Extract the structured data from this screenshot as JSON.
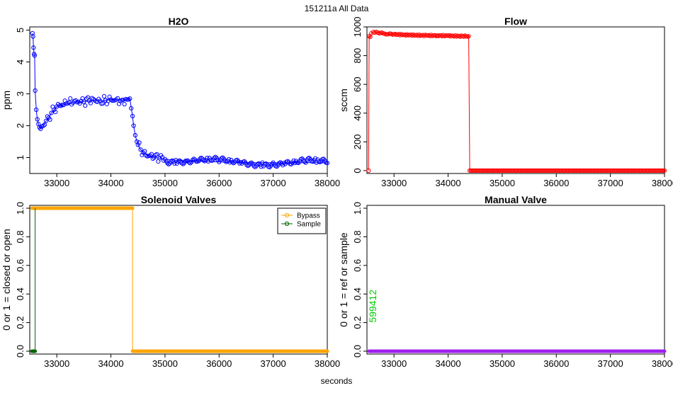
{
  "page": {
    "super_title": "151211a   All Data",
    "x_label": "seconds"
  },
  "chart_data": [
    {
      "id": "h2o",
      "type": "scatter",
      "title": "H2O",
      "xlabel": "",
      "ylabel": "ppm",
      "xlim": [
        32500,
        38000
      ],
      "ylim": [
        0.5,
        5.1
      ],
      "xticks": [
        33000,
        34000,
        35000,
        36000,
        37000,
        38000
      ],
      "yticks": [
        1,
        2,
        3,
        4,
        5
      ],
      "series": [
        {
          "color": "#0000ff",
          "marker": "open-circle",
          "line": true,
          "points": [
            [
              32550,
              4.9
            ],
            [
              32560,
              4.8
            ],
            [
              32570,
              4.45
            ],
            [
              32580,
              4.25
            ],
            [
              32590,
              4.2
            ],
            [
              32600,
              3.1
            ],
            [
              32620,
              2.5
            ],
            [
              32640,
              2.2
            ],
            [
              32660,
              2.05
            ],
            [
              32680,
              1.95
            ],
            [
              32700,
              1.9
            ],
            [
              32750,
              2.0
            ],
            [
              32800,
              2.15
            ],
            [
              32850,
              2.25
            ],
            [
              32900,
              2.4
            ],
            [
              32950,
              2.5
            ],
            [
              33000,
              2.6
            ],
            [
              33100,
              2.65
            ],
            [
              33200,
              2.7
            ],
            [
              33300,
              2.72
            ],
            [
              33400,
              2.75
            ],
            [
              33500,
              2.75
            ],
            [
              33600,
              2.78
            ],
            [
              33700,
              2.8
            ],
            [
              33800,
              2.78
            ],
            [
              33900,
              2.8
            ],
            [
              34000,
              2.82
            ],
            [
              34100,
              2.82
            ],
            [
              34200,
              2.8
            ],
            [
              34300,
              2.82
            ],
            [
              34350,
              2.85
            ],
            [
              34400,
              2.3
            ],
            [
              34420,
              2.0
            ],
            [
              34450,
              1.7
            ],
            [
              34480,
              1.5
            ],
            [
              34500,
              1.4
            ],
            [
              34550,
              1.25
            ],
            [
              34600,
              1.15
            ],
            [
              34700,
              1.05
            ],
            [
              34800,
              1.0
            ],
            [
              34900,
              0.98
            ],
            [
              35000,
              0.95
            ],
            [
              35200,
              0.92
            ],
            [
              35400,
              0.9
            ],
            [
              35600,
              0.88
            ],
            [
              35800,
              0.88
            ],
            [
              36000,
              0.86
            ],
            [
              36200,
              0.85
            ],
            [
              36400,
              0.85
            ],
            [
              36600,
              0.84
            ],
            [
              36800,
              0.84
            ],
            [
              37000,
              0.84
            ],
            [
              37200,
              0.83
            ],
            [
              37400,
              0.83
            ],
            [
              37600,
              0.84
            ],
            [
              37800,
              0.84
            ],
            [
              38000,
              0.83
            ]
          ]
        }
      ]
    },
    {
      "id": "flow",
      "type": "scatter",
      "title": "Flow",
      "xlabel": "",
      "ylabel": "sccm",
      "xlim": [
        32500,
        38000
      ],
      "ylim": [
        -20,
        1000
      ],
      "xticks": [
        33000,
        34000,
        35000,
        36000,
        37000,
        38000
      ],
      "yticks": [
        0,
        200,
        400,
        600,
        800,
        1000
      ],
      "series": [
        {
          "color": "#ff0000",
          "marker": "open-circle",
          "line": true,
          "points": [
            [
              32530,
              0
            ],
            [
              32540,
              935
            ],
            [
              32560,
              930
            ],
            [
              32580,
              955
            ],
            [
              32620,
              965
            ],
            [
              32700,
              960
            ],
            [
              32800,
              955
            ],
            [
              32900,
              950
            ],
            [
              33000,
              948
            ],
            [
              33200,
              945
            ],
            [
              33400,
              942
            ],
            [
              33600,
              940
            ],
            [
              33800,
              940
            ],
            [
              34000,
              938
            ],
            [
              34200,
              936
            ],
            [
              34380,
              935
            ],
            [
              34400,
              0
            ],
            [
              34600,
              0
            ],
            [
              35000,
              0
            ],
            [
              35500,
              0
            ],
            [
              36000,
              0
            ],
            [
              36500,
              0
            ],
            [
              37000,
              0
            ],
            [
              37500,
              0
            ],
            [
              38000,
              0
            ]
          ]
        }
      ]
    },
    {
      "id": "solenoid",
      "type": "line",
      "title": "Solenoid Valves",
      "xlabel": "",
      "ylabel": "0 or 1 = closed or open",
      "xlim": [
        32500,
        38000
      ],
      "ylim": [
        -0.02,
        1.02
      ],
      "xticks": [
        33000,
        34000,
        35000,
        36000,
        37000,
        38000
      ],
      "yticks": [
        0.0,
        0.2,
        0.4,
        0.6,
        0.8,
        1.0
      ],
      "ytick_labels": [
        "0.0",
        "0.2",
        "0.4",
        "0.6",
        "0.8",
        "1.0"
      ],
      "legend": "top-right",
      "series": [
        {
          "name": "Bypass",
          "color": "#ffa500",
          "points": [
            [
              32540,
              1
            ],
            [
              34400,
              1
            ],
            [
              34400,
              0
            ],
            [
              38000,
              0
            ]
          ]
        },
        {
          "name": "Sample",
          "color": "#006400",
          "points": [
            [
              32540,
              0
            ],
            [
              32600,
              0
            ],
            [
              32600,
              1
            ]
          ]
        }
      ]
    },
    {
      "id": "manual",
      "type": "line",
      "title": "Manual Valve",
      "xlabel": "",
      "ylabel": "0 or 1 = ref or sample",
      "xlim": [
        32500,
        38000
      ],
      "ylim": [
        -0.02,
        1.02
      ],
      "xticks": [
        33000,
        34000,
        35000,
        36000,
        37000,
        38000
      ],
      "yticks": [
        0.0,
        0.2,
        0.4,
        0.6,
        0.8,
        1.0
      ],
      "ytick_labels": [
        "0.0",
        "0.2",
        "0.4",
        "0.6",
        "0.8",
        "1.0"
      ],
      "annotation": {
        "text": "599412",
        "x": 32620,
        "y": 0.2,
        "color": "#00cc00"
      },
      "series": [
        {
          "color": "#a020f0",
          "points": [
            [
              32540,
              0
            ],
            [
              38000,
              0
            ]
          ]
        }
      ]
    }
  ]
}
